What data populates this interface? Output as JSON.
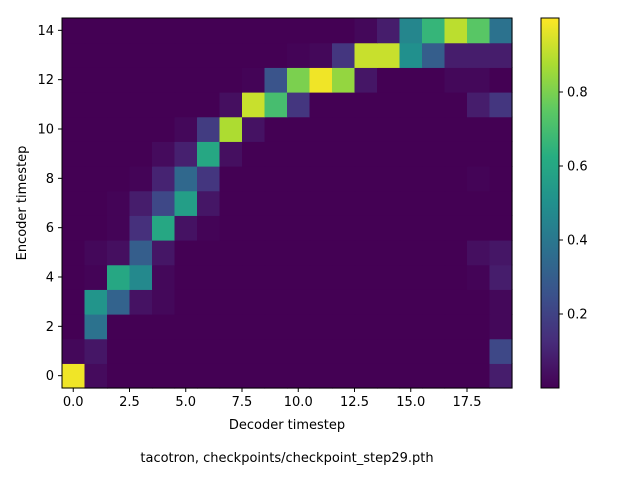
{
  "chart_data": {
    "type": "heatmap",
    "xlabel": "Decoder timestep",
    "ylabel": "Encoder timestep",
    "caption": "tacotron, checkpoints/checkpoint_step29.pth",
    "x_ticks": [
      {
        "value": 0.0,
        "label": "0.0"
      },
      {
        "value": 2.5,
        "label": "2.5"
      },
      {
        "value": 5.0,
        "label": "5.0"
      },
      {
        "value": 7.5,
        "label": "7.5"
      },
      {
        "value": 10.0,
        "label": "10.0"
      },
      {
        "value": 12.5,
        "label": "12.5"
      },
      {
        "value": 15.0,
        "label": "15.0"
      },
      {
        "value": 17.5,
        "label": "17.5"
      }
    ],
    "y_ticks": [
      {
        "value": 0,
        "label": "0"
      },
      {
        "value": 2,
        "label": "2"
      },
      {
        "value": 4,
        "label": "4"
      },
      {
        "value": 6,
        "label": "6"
      },
      {
        "value": 8,
        "label": "8"
      },
      {
        "value": 10,
        "label": "10"
      },
      {
        "value": 12,
        "label": "12"
      },
      {
        "value": 14,
        "label": "14"
      }
    ],
    "colorbar": {
      "min": 0.0,
      "max": 1.0,
      "ticks": [
        {
          "value": 0.2,
          "label": "0.2"
        },
        {
          "value": 0.4,
          "label": "0.4"
        },
        {
          "value": 0.6,
          "label": "0.6"
        },
        {
          "value": 0.8,
          "label": "0.8"
        }
      ]
    },
    "colormap": "viridis",
    "n_cols": 20,
    "n_rows": 15,
    "values": [
      [
        0.98,
        0.03,
        0.0,
        0.0,
        0.0,
        0.0,
        0.0,
        0.0,
        0.0,
        0.0,
        0.0,
        0.0,
        0.0,
        0.0,
        0.0,
        0.0,
        0.0,
        0.0,
        0.0,
        0.08
      ],
      [
        0.02,
        0.06,
        0.0,
        0.0,
        0.0,
        0.0,
        0.0,
        0.0,
        0.0,
        0.0,
        0.0,
        0.0,
        0.0,
        0.0,
        0.0,
        0.0,
        0.0,
        0.0,
        0.0,
        0.22
      ],
      [
        0.0,
        0.38,
        0.0,
        0.0,
        0.0,
        0.0,
        0.0,
        0.0,
        0.0,
        0.0,
        0.0,
        0.0,
        0.0,
        0.0,
        0.0,
        0.0,
        0.0,
        0.0,
        0.0,
        0.02
      ],
      [
        0.0,
        0.52,
        0.32,
        0.05,
        0.02,
        0.0,
        0.0,
        0.0,
        0.0,
        0.0,
        0.0,
        0.0,
        0.0,
        0.0,
        0.0,
        0.0,
        0.0,
        0.0,
        0.0,
        0.02
      ],
      [
        0.0,
        0.01,
        0.6,
        0.47,
        0.02,
        0.0,
        0.0,
        0.0,
        0.0,
        0.0,
        0.0,
        0.0,
        0.0,
        0.0,
        0.0,
        0.0,
        0.0,
        0.0,
        0.01,
        0.08
      ],
      [
        0.0,
        0.02,
        0.04,
        0.3,
        0.06,
        0.0,
        0.0,
        0.0,
        0.0,
        0.0,
        0.0,
        0.0,
        0.0,
        0.0,
        0.0,
        0.0,
        0.0,
        0.0,
        0.04,
        0.06
      ],
      [
        0.0,
        0.0,
        0.01,
        0.14,
        0.6,
        0.05,
        0.01,
        0.0,
        0.0,
        0.0,
        0.0,
        0.0,
        0.0,
        0.0,
        0.0,
        0.0,
        0.0,
        0.0,
        0.0,
        0.0
      ],
      [
        0.0,
        0.0,
        0.01,
        0.08,
        0.22,
        0.56,
        0.06,
        0.0,
        0.0,
        0.0,
        0.0,
        0.0,
        0.0,
        0.0,
        0.0,
        0.0,
        0.0,
        0.0,
        0.0,
        0.0
      ],
      [
        0.0,
        0.0,
        0.0,
        0.01,
        0.1,
        0.34,
        0.16,
        0.0,
        0.0,
        0.0,
        0.0,
        0.0,
        0.0,
        0.0,
        0.0,
        0.0,
        0.0,
        0.0,
        0.01,
        0.0
      ],
      [
        0.0,
        0.0,
        0.0,
        0.0,
        0.03,
        0.09,
        0.6,
        0.04,
        0.0,
        0.0,
        0.0,
        0.0,
        0.0,
        0.0,
        0.0,
        0.0,
        0.0,
        0.0,
        0.0,
        0.0
      ],
      [
        0.0,
        0.0,
        0.0,
        0.0,
        0.0,
        0.02,
        0.18,
        0.88,
        0.05,
        0.0,
        0.0,
        0.0,
        0.0,
        0.0,
        0.0,
        0.0,
        0.0,
        0.0,
        0.0,
        0.0
      ],
      [
        0.0,
        0.0,
        0.0,
        0.0,
        0.0,
        0.0,
        0.0,
        0.04,
        0.92,
        0.7,
        0.16,
        0.0,
        0.0,
        0.0,
        0.0,
        0.0,
        0.0,
        0.0,
        0.08,
        0.16
      ],
      [
        0.0,
        0.0,
        0.0,
        0.0,
        0.0,
        0.0,
        0.0,
        0.0,
        0.01,
        0.26,
        0.8,
        0.98,
        0.84,
        0.06,
        0.0,
        0.0,
        0.0,
        0.02,
        0.02,
        0.0
      ],
      [
        0.0,
        0.0,
        0.0,
        0.0,
        0.0,
        0.0,
        0.0,
        0.0,
        0.0,
        0.0,
        0.01,
        0.02,
        0.16,
        0.92,
        0.92,
        0.5,
        0.3,
        0.08,
        0.08,
        0.08
      ],
      [
        0.0,
        0.0,
        0.0,
        0.0,
        0.0,
        0.0,
        0.0,
        0.0,
        0.0,
        0.0,
        0.0,
        0.0,
        0.0,
        0.02,
        0.08,
        0.46,
        0.66,
        0.9,
        0.74,
        0.38
      ]
    ]
  }
}
